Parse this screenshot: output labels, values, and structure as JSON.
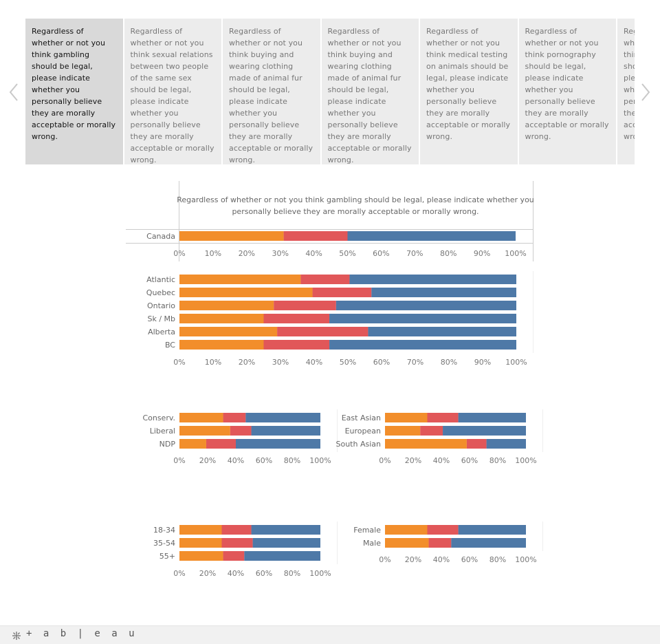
{
  "tabs": [
    "Regardless of whether or not you think gambling should be legal, please indicate whether you personally believe they are morally acceptable or morally wrong.",
    "Regardless of whether or not you think sexual relations between two people of the same sex should be legal, please indicate whether you personally believe they are morally acceptable or morally wrong.",
    "Regardless of whether or not you think buying and wearing clothing made of animal fur should be legal, please indicate whether you personally believe they are morally acceptable or morally wrong.",
    "Regardless of whether or not you think buying and wearing clothing made of animal fur should be legal, please indicate whether you personally believe they are morally acceptable or morally wrong.",
    "Regardless of whether or not you think medical testing on animals should be legal, please indicate whether you personally believe they are morally acceptable or morally wrong.",
    "Regardless of whether or not you think pornography should be legal, please indicate whether you personally believe they are morally acceptable or morally wrong.",
    "Regardless of whether or not you think prostitution should be legal, please indicate whether you personally believe they are morally acceptable or morally wrong."
  ],
  "footer": {
    "brand": "+ a b | e a u"
  },
  "colors": {
    "acceptable": "#f28e2b",
    "depends": "#e15759",
    "wrong": "#4e79a7",
    "active_tab": "#d9d9d9",
    "tab": "#ececec"
  },
  "chart_data": [
    {
      "type": "bar",
      "orientation": "horizontal",
      "stacked": true,
      "title": "Regardless of whether or not you think gambling should be legal, please indicate whether you personally believe they are morally acceptable or morally wrong.",
      "categories": [
        "Canada"
      ],
      "series": [
        {
          "values": [
            31
          ]
        },
        {
          "values": [
            19
          ]
        },
        {
          "values": [
            50
          ]
        }
      ],
      "xlim": [
        0,
        100
      ],
      "xticks": [
        "0%",
        "10%",
        "20%",
        "30%",
        "40%",
        "50%",
        "60%",
        "70%",
        "80%",
        "90%",
        "100%"
      ]
    },
    {
      "type": "bar",
      "orientation": "horizontal",
      "stacked": true,
      "categories": [
        "Atlantic",
        "Quebec",
        "Ontario",
        "Sk / Mb",
        "Alberta",
        "BC"
      ],
      "series": [
        {
          "values": [
            36,
            39.5,
            28,
            25,
            29,
            25
          ]
        },
        {
          "values": [
            14.5,
            17.5,
            18.5,
            19.5,
            27,
            19.5
          ]
        },
        {
          "values": [
            49.5,
            43,
            53.5,
            55.5,
            44,
            55.5
          ]
        }
      ],
      "xlim": [
        0,
        100
      ],
      "xticks": [
        "0%",
        "10%",
        "20%",
        "30%",
        "40%",
        "50%",
        "60%",
        "70%",
        "80%",
        "90%",
        "100%"
      ]
    },
    {
      "type": "bar",
      "orientation": "horizontal",
      "stacked": true,
      "categories": [
        "Conserv.",
        "Liberal",
        "NDP"
      ],
      "series": [
        {
          "values": [
            31,
            36,
            19
          ]
        },
        {
          "values": [
            16,
            15,
            21
          ]
        },
        {
          "values": [
            53,
            49,
            60
          ]
        }
      ],
      "xlim": [
        0,
        100
      ],
      "xticks": [
        "0%",
        "20%",
        "40%",
        "60%",
        "80%",
        "100%"
      ]
    },
    {
      "type": "bar",
      "orientation": "horizontal",
      "stacked": true,
      "categories": [
        "East Asian",
        "European",
        "South Asian"
      ],
      "series": [
        {
          "values": [
            30,
            25,
            58
          ]
        },
        {
          "values": [
            22,
            16,
            14
          ]
        },
        {
          "values": [
            48,
            59,
            28
          ]
        }
      ],
      "xlim": [
        0,
        100
      ],
      "xticks": [
        "0%",
        "20%",
        "40%",
        "60%",
        "80%",
        "100%"
      ]
    },
    {
      "type": "bar",
      "orientation": "horizontal",
      "stacked": true,
      "categories": [
        "18-34",
        "35-54",
        "55+"
      ],
      "series": [
        {
          "values": [
            30,
            30,
            31
          ]
        },
        {
          "values": [
            21,
            22,
            15
          ]
        },
        {
          "values": [
            49,
            48,
            54
          ]
        }
      ],
      "xlim": [
        0,
        100
      ],
      "xticks": [
        "0%",
        "20%",
        "40%",
        "60%",
        "80%",
        "100%"
      ]
    },
    {
      "type": "bar",
      "orientation": "horizontal",
      "stacked": true,
      "categories": [
        "Female",
        "Male"
      ],
      "series": [
        {
          "values": [
            30,
            31
          ]
        },
        {
          "values": [
            22,
            16
          ]
        },
        {
          "values": [
            48,
            53
          ]
        }
      ],
      "xlim": [
        0,
        100
      ],
      "xticks": [
        "0%",
        "20%",
        "40%",
        "60%",
        "80%",
        "100%"
      ]
    }
  ]
}
